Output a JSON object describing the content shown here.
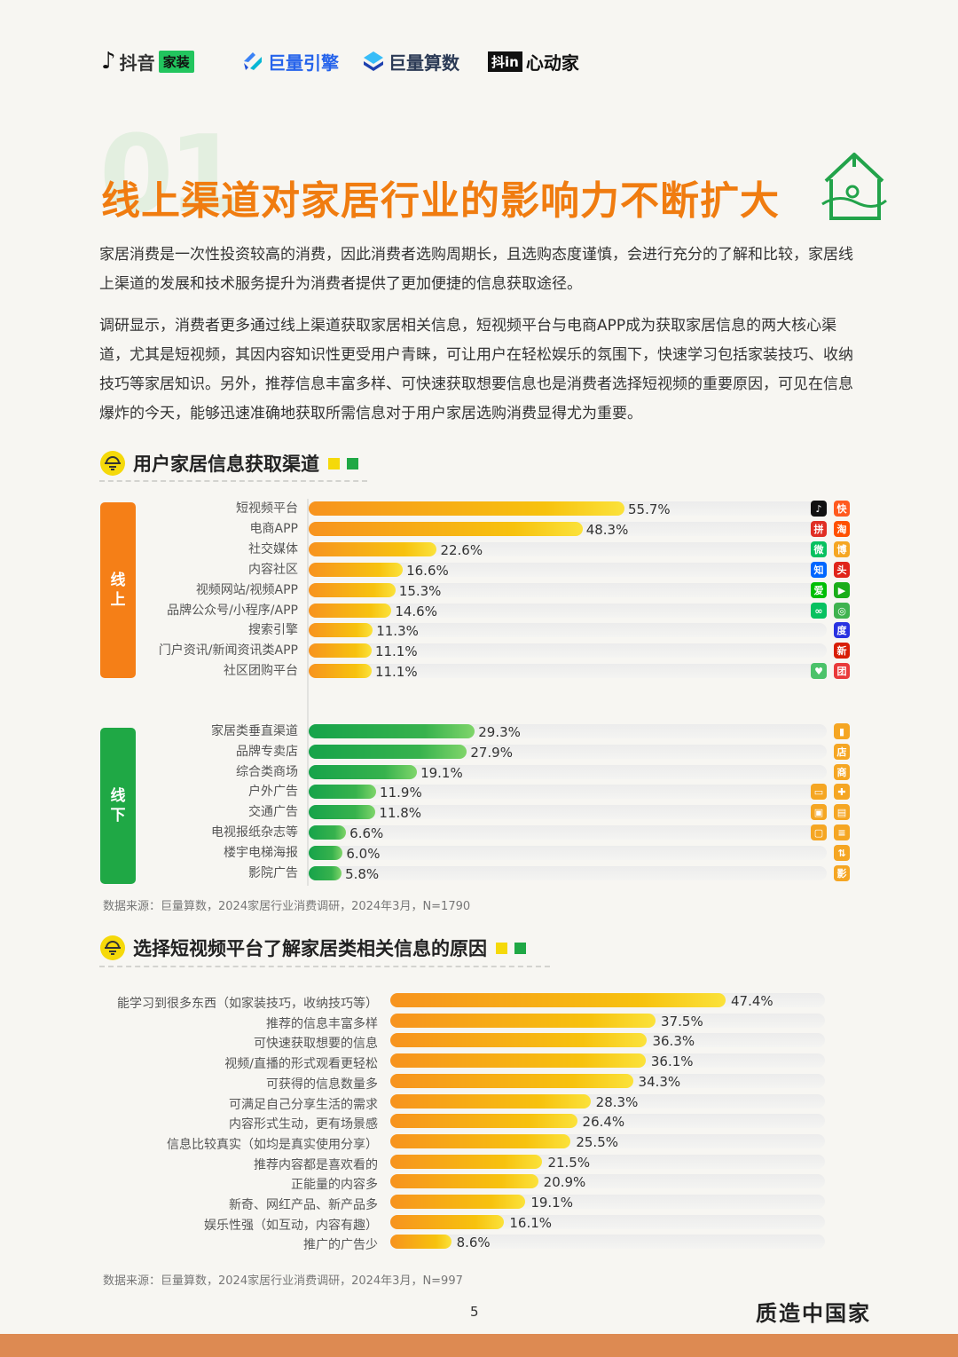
{
  "header": {
    "logos": [
      {
        "name": "抖音",
        "tag": "家装"
      },
      {
        "name": "巨量引擎"
      },
      {
        "name": "巨量算数"
      },
      {
        "badge": "抖in",
        "name": "心动家"
      }
    ]
  },
  "section_number": "01",
  "title": "线上渠道对家居行业的影响力不断扩大",
  "paragraphs": [
    "家居消费是一次性投资较高的消费，因此消费者选购周期长，且选购态度谨慎，会进行充分的了解和比较，家居线上渠道的发展和技术服务提升为消费者提供了更加便捷的信息获取途径。",
    "调研显示，消费者更多通过线上渠道获取家居相关信息，短视频平台与电商APP成为获取家居信息的两大核心渠道，尤其是短视频，其因内容知识性更受用户青睐，可让用户在轻松娱乐的氛围下，快速学习包括家装技巧、收纳技巧等家居知识。另外，推荐信息丰富多样、可快速获取想要信息也是消费者选择短视频的重要原因，可见在信息爆炸的今天，能够迅速准确地获取所需信息对于用户家居选购消费显得尤为重要。"
  ],
  "colors": {
    "orange": "#f57f17",
    "green": "#1fa845",
    "yellow": "#f5d90a",
    "title": "#f07c10"
  },
  "chart1_title": "用户家居信息获取渠道",
  "chart2_title": "选择短视频平台了解家居类相关信息的原因",
  "chart_data": [
    {
      "type": "bar",
      "orientation": "horizontal",
      "title": "用户家居信息获取渠道",
      "groups": [
        {
          "name": "线上",
          "categories": [
            "短视频平台",
            "电商APP",
            "社交媒体",
            "内容社区",
            "视频网站/视频APP",
            "品牌公众号/小程序/APP",
            "搜索引擎",
            "门户资讯/新闻资讯类APP",
            "社区团购平台"
          ],
          "values": [
            55.7,
            48.3,
            22.6,
            16.6,
            15.3,
            14.6,
            11.3,
            11.1,
            11.1
          ],
          "icons": [
            [
              "douyin-icon",
              "kuaishou-icon"
            ],
            [
              "pinduoduo-icon",
              "taobao-icon"
            ],
            [
              "wechat-icon",
              "weibo-icon"
            ],
            [
              "zhihu-icon",
              "toutiao-icon"
            ],
            [
              "iqiyi-icon",
              "tencent-video-icon"
            ],
            [
              "mini-program-icon",
              "wechat-channels-icon"
            ],
            [
              "baidu-icon"
            ],
            [
              "news-icon"
            ],
            [
              "meituan-icon",
              "tuangou-icon"
            ]
          ]
        },
        {
          "name": "线下",
          "categories": [
            "家居类垂直渠道",
            "品牌专卖店",
            "综合类商场",
            "户外广告",
            "交通广告",
            "电视报纸杂志等",
            "楼宇电梯海报",
            "影院广告"
          ],
          "values": [
            29.3,
            27.9,
            19.1,
            11.9,
            11.8,
            6.6,
            6.0,
            5.8
          ],
          "icons": [
            [
              "building-icon"
            ],
            [
              "store-icon"
            ],
            [
              "mall-icon"
            ],
            [
              "billboard-icon",
              "signpost-icon"
            ],
            [
              "subway-icon",
              "bus-icon"
            ],
            [
              "tv-icon",
              "newspaper-icon"
            ],
            [
              "elevator-icon"
            ],
            [
              "cinema-icon"
            ]
          ]
        }
      ],
      "value_suffix": "%",
      "xlim": [
        0,
        100
      ],
      "source": "数据来源：巨量算数，2024家居行业消费调研，2024年3月，N=1790"
    },
    {
      "type": "bar",
      "orientation": "horizontal",
      "title": "选择短视频平台了解家居类相关信息的原因",
      "categories": [
        "能学习到很多东西（如家装技巧，收纳技巧等）",
        "推荐的信息丰富多样",
        "可快速获取想要的信息",
        "视频/直播的形式观看更轻松",
        "可获得的信息数量多",
        "可满足自己分享生活的需求",
        "内容形式生动，更有场景感",
        "信息比较真实（如均是真实使用分享）",
        "推荐内容都是喜欢看的",
        "正能量的内容多",
        "新奇、网红产品、新产品多",
        "娱乐性强（如互动，内容有趣）",
        "推广的广告少"
      ],
      "values": [
        47.4,
        37.5,
        36.3,
        36.1,
        34.3,
        28.3,
        26.4,
        25.5,
        21.5,
        20.9,
        19.1,
        16.1,
        8.6
      ],
      "value_suffix": "%",
      "xlim": [
        0,
        62
      ],
      "source": "数据来源：巨量算数，2024家居行业消费调研，2024年3月，N=997"
    }
  ],
  "footer": {
    "page_number": "5",
    "brand": "质造中国家"
  }
}
